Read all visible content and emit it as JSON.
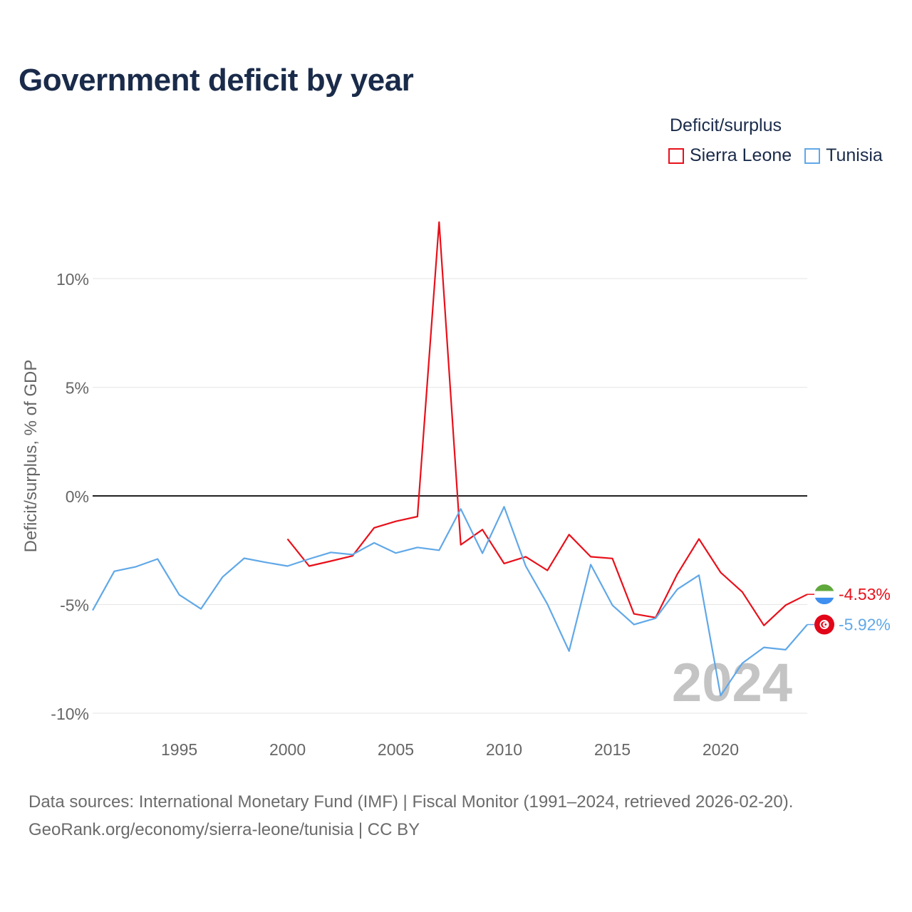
{
  "title": "Government deficit by year",
  "legend": {
    "title": "Deficit/surplus",
    "items": [
      {
        "label": "Sierra Leone",
        "color": "#e8101a"
      },
      {
        "label": "Tunisia",
        "color": "#60a8e8"
      }
    ]
  },
  "source": {
    "line1": "Data sources: International Monetary Fund (IMF) | Fiscal Monitor (1991–2024, retrieved 2026-02-20).",
    "line2": "GeoRank.org/economy/sierra-leone/tunisia | CC BY"
  },
  "chart_data": {
    "type": "line",
    "title": "Government deficit by year",
    "xlabel": "",
    "ylabel": "Deficit/surplus, % of GDP",
    "xlim": [
      1991,
      2024
    ],
    "ylim": [
      -10,
      12.5
    ],
    "yticks": [
      10,
      5,
      0,
      -5,
      -10
    ],
    "ytick_labels": [
      "10%",
      "5%",
      "0%",
      "-5%",
      "-10%"
    ],
    "xticks": [
      1995,
      2000,
      2005,
      2010,
      2015,
      2020
    ],
    "xtick_labels": [
      "1995",
      "2000",
      "2005",
      "2010",
      "2015",
      "2020"
    ],
    "watermark_year": "2024",
    "series": [
      {
        "name": "Sierra Leone",
        "color": "#e8101a",
        "end_label": "-4.53%",
        "x": [
          2000,
          2001,
          2002,
          2003,
          2004,
          2005,
          2006,
          2007,
          2008,
          2009,
          2010,
          2011,
          2012,
          2013,
          2014,
          2015,
          2016,
          2017,
          2018,
          2019,
          2020,
          2021,
          2022,
          2023,
          2024
        ],
        "values": [
          -1.98,
          -3.23,
          -3.0,
          -2.76,
          -1.47,
          -1.17,
          -0.95,
          12.6,
          -2.25,
          -1.55,
          -3.11,
          -2.8,
          -3.43,
          -1.78,
          -2.8,
          -2.88,
          -5.43,
          -5.6,
          -3.6,
          -1.98,
          -3.52,
          -4.42,
          -5.96,
          -5.03,
          -4.53
        ]
      },
      {
        "name": "Tunisia",
        "color": "#60a8e8",
        "end_label": "-5.92%",
        "x": [
          1991,
          1992,
          1993,
          1994,
          1995,
          1996,
          1997,
          1998,
          1999,
          2000,
          2001,
          2002,
          2003,
          2004,
          2005,
          2006,
          2007,
          2008,
          2009,
          2010,
          2011,
          2012,
          2013,
          2014,
          2015,
          2016,
          2017,
          2018,
          2019,
          2020,
          2021,
          2022,
          2023,
          2024
        ],
        "values": [
          -5.27,
          -3.47,
          -3.26,
          -2.9,
          -4.55,
          -5.2,
          -3.73,
          -2.87,
          -3.06,
          -3.23,
          -2.9,
          -2.6,
          -2.7,
          -2.16,
          -2.63,
          -2.37,
          -2.5,
          -0.6,
          -2.64,
          -0.5,
          -3.23,
          -4.98,
          -7.14,
          -3.16,
          -5.03,
          -5.92,
          -5.63,
          -4.3,
          -3.65,
          -9.19,
          -7.7,
          -6.97,
          -7.08,
          -5.92
        ]
      }
    ]
  }
}
